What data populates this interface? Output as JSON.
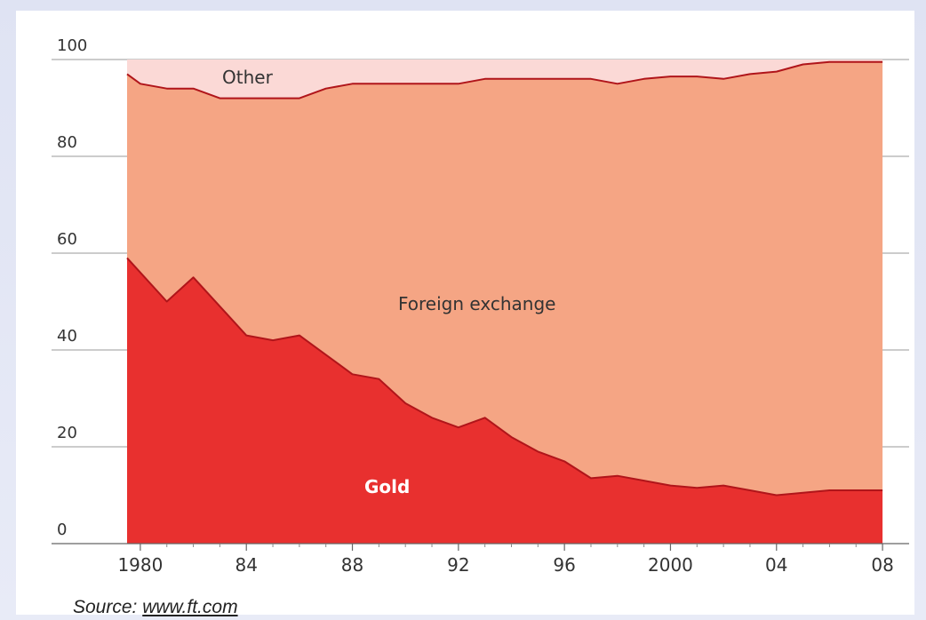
{
  "chart_data": {
    "type": "area",
    "stacked": true,
    "percent": true,
    "title": "",
    "xlabel": "",
    "ylabel": "",
    "ylim": [
      0,
      100
    ],
    "yticks": [
      0,
      20,
      40,
      60,
      80,
      100
    ],
    "xlim": [
      1979.5,
      2008.5
    ],
    "xticks": [
      1980,
      1984,
      1988,
      1992,
      1996,
      2000,
      2004,
      2008
    ],
    "xtick_labels": [
      "1980",
      "84",
      "88",
      "92",
      "96",
      "2000",
      "04",
      "08"
    ],
    "grid": "horizontal",
    "x": [
      1979.5,
      1980,
      1981,
      1982,
      1983,
      1984,
      1985,
      1986,
      1987,
      1988,
      1989,
      1990,
      1991,
      1992,
      1993,
      1994,
      1995,
      1996,
      1997,
      1998,
      1999,
      2000,
      2001,
      2002,
      2003,
      2004,
      2005,
      2006,
      2007,
      2008
    ],
    "series": [
      {
        "name": "Gold",
        "color": "#e8302f",
        "values": [
          59,
          56,
          50,
          55,
          49,
          43,
          42,
          43,
          39,
          35,
          34,
          29,
          26,
          24,
          26,
          22,
          19,
          17,
          13.5,
          14,
          13,
          12,
          11.5,
          12,
          11,
          10,
          10.5,
          11,
          11,
          11
        ]
      },
      {
        "name": "Foreign exchange",
        "color": "#f5a584",
        "values": [
          38,
          39,
          44,
          39,
          43,
          49,
          50,
          49,
          55,
          60,
          61,
          66,
          69,
          71,
          70,
          74,
          77,
          79,
          82.5,
          81,
          83,
          84.5,
          85,
          84,
          86,
          87.5,
          88.5,
          88.5,
          88.5,
          88.5
        ]
      },
      {
        "name": "Other",
        "color": "#fbd9d6",
        "values": [
          3,
          5,
          6,
          6,
          8,
          8,
          8,
          8,
          6,
          5,
          5,
          5,
          5,
          5,
          4,
          4,
          4,
          4,
          4,
          5,
          4,
          3.5,
          3.5,
          4,
          3,
          2.5,
          1,
          0.5,
          0.5,
          0.5
        ]
      }
    ]
  },
  "labels": {
    "gold": "Gold",
    "foreign": "Foreign exchange",
    "other": "Other"
  },
  "source": {
    "prefix": "Source:",
    "link": "www.ft.com"
  }
}
